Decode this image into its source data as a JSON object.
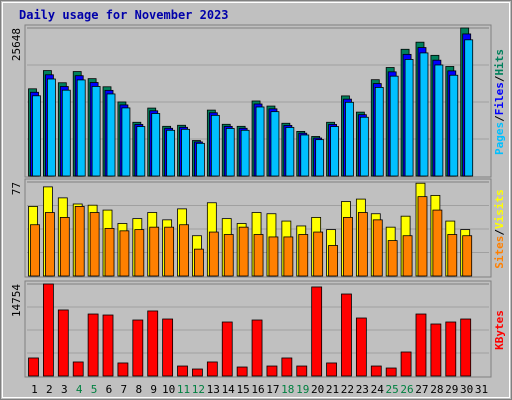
{
  "chart_data": {
    "type": "bar",
    "title": "Daily usage for November 2023",
    "categories": [
      "1",
      "2",
      "3",
      "4",
      "5",
      "6",
      "7",
      "8",
      "9",
      "10",
      "11",
      "12",
      "13",
      "14",
      "15",
      "16",
      "17",
      "18",
      "19",
      "20",
      "21",
      "22",
      "23",
      "24",
      "25",
      "26",
      "27",
      "28",
      "29",
      "30",
      "31"
    ],
    "weekends": [
      "4",
      "5",
      "11",
      "12",
      "18",
      "19",
      "25",
      "26"
    ],
    "weekend_color": "#008040",
    "legend_separator": "/",
    "panels": [
      {
        "ylim": [
          0,
          25648
        ],
        "yticks": [
          25648
        ],
        "series": [
          {
            "name": "Pages",
            "color": "#00c0ff",
            "values": [
              13900,
              16810,
              14870,
              16650,
              15520,
              14220,
              11800,
              8570,
              10830,
              7920,
              8090,
              5660,
              10510,
              8240,
              7920,
              11960,
              11150,
              8410,
              7110,
              6300,
              8570,
              12770,
              10180,
              15350,
              17300,
              20200,
              21330,
              19240,
              17460,
              23600,
              0
            ]
          },
          {
            "name": "Files",
            "color": "#0000ff",
            "values": [
              14510,
              17540,
              15510,
              17380,
              16200,
              14840,
              12320,
              8940,
              11300,
              8270,
              8440,
              5900,
              10960,
              8600,
              8270,
              12480,
              11640,
              8770,
              7420,
              6580,
              8940,
              13320,
              10630,
              16020,
              18050,
              21080,
              22260,
              20070,
              18220,
              24620,
              0
            ]
          },
          {
            "name": "Hits",
            "color": "#00805c",
            "values": [
              15110,
              18270,
              16160,
              18100,
              16870,
              15460,
              12830,
              9310,
              11770,
              8610,
              8790,
              6150,
              11420,
              8960,
              8610,
              13000,
              12120,
              9140,
              7730,
              6850,
              9310,
              13880,
              11070,
              16690,
              18800,
              21960,
              23190,
              20910,
              18980,
              25648,
              0
            ]
          }
        ]
      },
      {
        "ylim": [
          0,
          77
        ],
        "yticks": [
          77
        ],
        "series": [
          {
            "name": "Sites",
            "color": "#ff8000",
            "values": [
              42,
              52,
              48,
              57,
              52,
              39,
              37,
              38,
              40,
              40,
              42,
              22,
              36,
              34,
              40,
              34,
              32,
              32,
              34,
              36,
              25,
              48,
              52,
              46,
              29,
              33,
              65,
              54,
              34,
              33,
              0
            ]
          },
          {
            "name": "Visits",
            "color": "#ffff00",
            "values": [
              57,
              73,
              64,
              59,
              58,
              54,
              43,
              47,
              52,
              46,
              55,
              33,
              60,
              47,
              43,
              52,
              51,
              45,
              41,
              48,
              38,
              61,
              63,
              51,
              40,
              49,
              76,
              66,
              45,
              38,
              0
            ]
          }
        ]
      },
      {
        "ylim": [
          0,
          14754
        ],
        "yticks": [
          14754
        ],
        "series": [
          {
            "name": "KBytes",
            "color": "#ff0000",
            "values": [
              2890,
              14754,
              10590,
              2250,
              9940,
              9780,
              2090,
              8980,
              10430,
              9140,
              1600,
              1120,
              2250,
              8660,
              1440,
              8980,
              1600,
              2890,
              1600,
              14280,
              2090,
              13150,
              9300,
              1600,
              1280,
              3850,
              9940,
              8340,
              8660,
              9140,
              0
            ]
          }
        ]
      }
    ]
  }
}
